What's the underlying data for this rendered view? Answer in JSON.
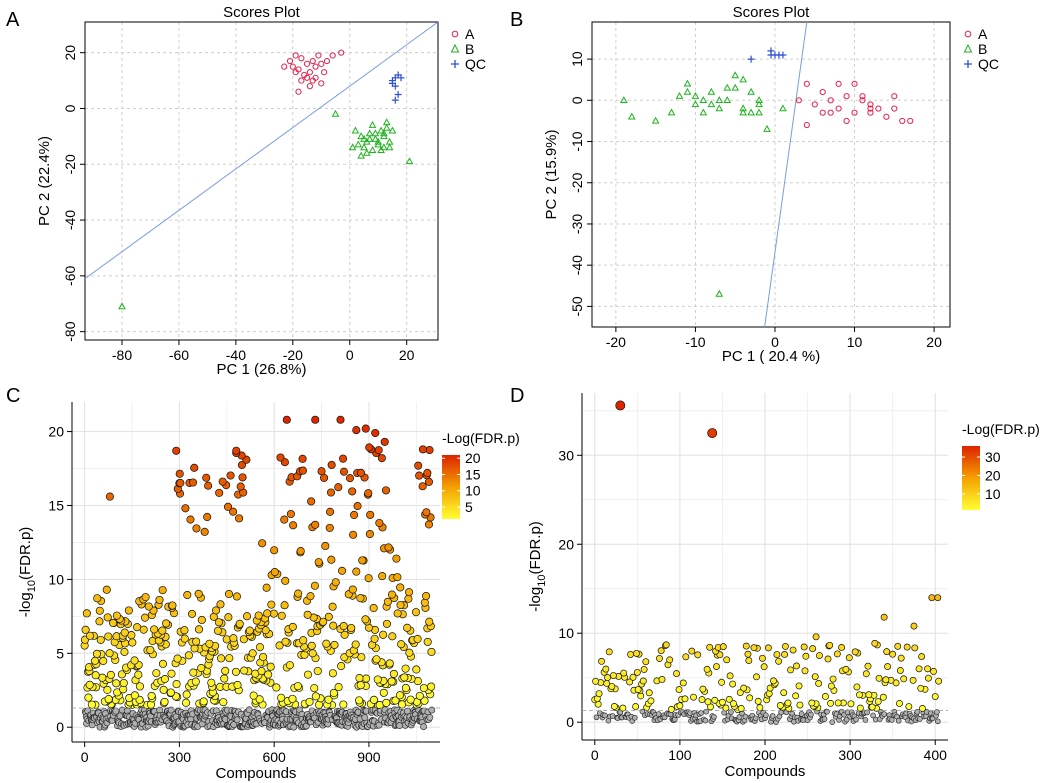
{
  "colors": {
    "group_a": "#e3224a",
    "group_b": "#1db31d",
    "group_qc": "#2f4fd6",
    "reg_line": "#7a9de0",
    "grid": "#cfcfcf",
    "background": "#ffffff",
    "grad_low": "#ffff33",
    "grad_mid": "#f5a000",
    "grad_high": "#dd2200",
    "below_threshold": "#b0b0b0"
  },
  "chart_data": [
    {
      "panel": "A",
      "type": "scatter",
      "title": "Scores Plot",
      "xlabel": "PC 1 (26.8%)",
      "ylabel": "PC 2 (22.4%)",
      "xlim": [
        -93,
        31
      ],
      "ylim": [
        -83,
        31
      ],
      "xticks": [
        -80,
        -60,
        -40,
        -20,
        0,
        20
      ],
      "yticks": [
        20,
        0,
        -20,
        -40,
        -60,
        -80
      ],
      "legend": [
        "A",
        "B",
        "QC"
      ],
      "legend_position": "top-right",
      "reg_line": [
        [
          -93,
          -61
        ],
        [
          31,
          31
        ]
      ],
      "series": [
        {
          "name": "A",
          "marker": "circle",
          "points": [
            [
              -21,
              17
            ],
            [
              -20,
              15
            ],
            [
              -19,
              19
            ],
            [
              -18,
              14
            ],
            [
              -17,
              18
            ],
            [
              -16,
              12
            ],
            [
              -15,
              16
            ],
            [
              -14,
              13
            ],
            [
              -13,
              17
            ],
            [
              -12,
              15
            ],
            [
              -11,
              19
            ],
            [
              -10,
              16
            ],
            [
              -9,
              13
            ],
            [
              -8,
              17
            ],
            [
              -17,
              10
            ],
            [
              -15,
              11
            ],
            [
              -23,
              15
            ],
            [
              -19,
              13
            ],
            [
              -12,
              11
            ],
            [
              -3,
              20
            ],
            [
              -13,
              10
            ],
            [
              -18,
              6
            ],
            [
              -14,
              8
            ],
            [
              -10,
              9
            ],
            [
              -6,
              19
            ]
          ]
        },
        {
          "name": "B",
          "marker": "triangle",
          "points": [
            [
              -80,
              -71
            ],
            [
              -5,
              -2
            ],
            [
              2,
              -8
            ],
            [
              4,
              -10
            ],
            [
              5,
              -14
            ],
            [
              6,
              -12
            ],
            [
              7,
              -9
            ],
            [
              8,
              -6
            ],
            [
              9,
              -11
            ],
            [
              10,
              -13
            ],
            [
              11,
              -8
            ],
            [
              12,
              -10
            ],
            [
              13,
              -7
            ],
            [
              14,
              -12
            ],
            [
              3,
              -13
            ],
            [
              6,
              -16
            ],
            [
              8,
              -15
            ],
            [
              10,
              -12
            ],
            [
              12,
              -9
            ],
            [
              13,
              -5
            ],
            [
              11,
              -15
            ],
            [
              9,
              -9
            ],
            [
              7,
              -11
            ],
            [
              5,
              -11
            ],
            [
              14,
              -14
            ],
            [
              21,
              -19
            ],
            [
              1,
              -14
            ],
            [
              4,
              -17
            ],
            [
              15,
              -8
            ],
            [
              12,
              -14
            ]
          ]
        },
        {
          "name": "QC",
          "marker": "plus",
          "points": [
            [
              15,
              10
            ],
            [
              16,
              11
            ],
            [
              17,
              12
            ],
            [
              16,
              8
            ],
            [
              17,
              5
            ],
            [
              16,
              3
            ],
            [
              18,
              11
            ],
            [
              15,
              9
            ]
          ]
        }
      ]
    },
    {
      "panel": "B",
      "type": "scatter",
      "title": "Scores Plot",
      "xlabel": "PC 1 ( 20.4 %)",
      "ylabel": "PC 2 (15.9%)",
      "xlim": [
        -23,
        22
      ],
      "ylim": [
        -55,
        19
      ],
      "xticks": [
        -20,
        -10,
        0,
        10,
        20
      ],
      "yticks": [
        10,
        0,
        -10,
        -20,
        -30,
        -40,
        -50
      ],
      "legend": [
        "A",
        "B",
        "QC"
      ],
      "legend_position": "top-right",
      "reg_line": [
        [
          -1.3,
          -55
        ],
        [
          4,
          19
        ]
      ],
      "series": [
        {
          "name": "A",
          "marker": "circle",
          "points": [
            [
              4,
              4
            ],
            [
              5,
              -1
            ],
            [
              6,
              2
            ],
            [
              7,
              0
            ],
            [
              8,
              4
            ],
            [
              8,
              -2
            ],
            [
              9,
              1
            ],
            [
              9,
              -5
            ],
            [
              10,
              -3
            ],
            [
              10,
              4
            ],
            [
              11,
              0
            ],
            [
              12,
              -2
            ],
            [
              12,
              -3
            ],
            [
              13,
              -2
            ],
            [
              14,
              -4
            ],
            [
              15,
              -2
            ],
            [
              16,
              -5
            ],
            [
              17,
              -5
            ],
            [
              15,
              1
            ],
            [
              7,
              -3
            ],
            [
              6,
              -3
            ],
            [
              4,
              -6
            ],
            [
              3,
              0
            ],
            [
              11,
              1
            ],
            [
              12,
              -1
            ]
          ]
        },
        {
          "name": "B",
          "marker": "triangle",
          "points": [
            [
              -19,
              0
            ],
            [
              -18,
              -4
            ],
            [
              -15,
              -5
            ],
            [
              -13,
              -3
            ],
            [
              -11,
              4
            ],
            [
              -11,
              2
            ],
            [
              -10,
              1
            ],
            [
              -9,
              0
            ],
            [
              -9,
              -3
            ],
            [
              -8,
              2
            ],
            [
              -7,
              0
            ],
            [
              -7,
              -2
            ],
            [
              -6,
              0
            ],
            [
              -5,
              3
            ],
            [
              -5,
              6
            ],
            [
              -4,
              5
            ],
            [
              -4,
              -2
            ],
            [
              -3,
              -3
            ],
            [
              -3,
              2
            ],
            [
              -2,
              0
            ],
            [
              -2,
              -3
            ],
            [
              -1,
              -7
            ],
            [
              -6,
              3
            ],
            [
              -8,
              -1
            ],
            [
              -10,
              -1
            ],
            [
              -4,
              -3
            ],
            [
              -2,
              -1
            ],
            [
              1,
              -2
            ],
            [
              -7,
              -47
            ],
            [
              -12,
              1
            ]
          ]
        },
        {
          "name": "QC",
          "marker": "plus",
          "points": [
            [
              -3,
              10
            ],
            [
              -0.5,
              12
            ],
            [
              0,
              11
            ],
            [
              0.5,
              11
            ],
            [
              1,
              11
            ],
            [
              -0.5,
              11
            ]
          ]
        }
      ]
    },
    {
      "panel": "C",
      "type": "scatter",
      "title": "",
      "xlabel": "Compounds",
      "ylabel": "-log10(FDR.p)",
      "xlim": [
        -40,
        1125
      ],
      "ylim": [
        -1,
        22
      ],
      "xticks": [
        0,
        300,
        600,
        900
      ],
      "yticks": [
        0,
        5,
        10,
        15,
        20
      ],
      "legend_title": "-Log(FDR.p)",
      "legend_ticks": [
        20,
        15,
        10,
        5
      ],
      "color_range": [
        1.3,
        21
      ],
      "threshold": 1.3,
      "n_compounds": 1100,
      "highlight_points": [
        [
          640,
          20.8
        ],
        [
          730,
          20.8
        ],
        [
          810,
          20.8
        ],
        [
          860,
          20.1
        ],
        [
          890,
          20.2
        ],
        [
          920,
          19.9
        ],
        [
          950,
          19.3
        ],
        [
          80,
          15.6
        ],
        [
          290,
          18.7
        ],
        [
          480,
          18.7
        ],
        [
          1090,
          16.6
        ],
        [
          1070,
          16.3
        ],
        [
          1085,
          17.2
        ]
      ]
    },
    {
      "panel": "D",
      "type": "scatter",
      "title": "",
      "xlabel": "Compounds",
      "ylabel": "-log10(FDR.p)",
      "xlim": [
        -15,
        415
      ],
      "ylim": [
        -2,
        37
      ],
      "xticks": [
        0,
        100,
        200,
        300,
        400
      ],
      "yticks": [
        0,
        10,
        20,
        30
      ],
      "legend_title": "-Log(FDR.p)",
      "legend_ticks": [
        30,
        20,
        10
      ],
      "color_range": [
        1.3,
        36
      ],
      "threshold": 1.3,
      "n_compounds": 405,
      "highlight_points": [
        [
          30,
          35.6
        ],
        [
          138,
          32.5
        ],
        [
          340,
          11.8
        ],
        [
          375,
          10.8
        ],
        [
          396,
          14
        ],
        [
          403,
          14
        ],
        [
          260,
          9.6
        ],
        [
          290,
          8.4
        ]
      ]
    }
  ]
}
